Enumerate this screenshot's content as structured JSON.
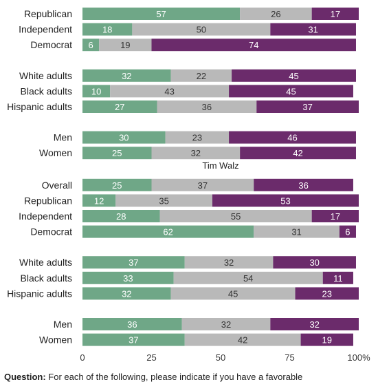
{
  "chart_data": {
    "type": "bar",
    "orientation": "horizontal",
    "stacked": true,
    "xlim": [
      0,
      100
    ],
    "x_ticks": [
      "0",
      "25",
      "50",
      "75",
      "100%"
    ],
    "segment_colors": [
      "#6fa787",
      "#b9b9b9",
      "#6b2b6b"
    ],
    "segment_label_colors": [
      "#ffffff",
      "#333333",
      "#ffffff"
    ],
    "panels": [
      {
        "title": "",
        "groups": [
          {
            "rows": [
              {
                "label": "Republican",
                "values": [
                  57,
                  26,
                  17
                ]
              },
              {
                "label": "Independent",
                "values": [
                  18,
                  50,
                  31
                ]
              },
              {
                "label": "Democrat",
                "values": [
                  6,
                  19,
                  74
                ]
              }
            ]
          },
          {
            "rows": [
              {
                "label": "White adults",
                "values": [
                  32,
                  22,
                  45
                ]
              },
              {
                "label": "Black adults",
                "values": [
                  10,
                  43,
                  45
                ]
              },
              {
                "label": "Hispanic adults",
                "values": [
                  27,
                  36,
                  37
                ]
              }
            ]
          },
          {
            "rows": [
              {
                "label": "Men",
                "values": [
                  30,
                  23,
                  46
                ]
              },
              {
                "label": "Women",
                "values": [
                  25,
                  32,
                  42
                ]
              }
            ]
          }
        ]
      },
      {
        "title": "Tim Walz",
        "groups": [
          {
            "rows": [
              {
                "label": "Overall",
                "values": [
                  25,
                  37,
                  36
                ]
              },
              {
                "label": "Republican",
                "values": [
                  12,
                  35,
                  53
                ]
              },
              {
                "label": "Independent",
                "values": [
                  28,
                  55,
                  17
                ]
              },
              {
                "label": "Democrat",
                "values": [
                  62,
                  31,
                  6
                ]
              }
            ]
          },
          {
            "rows": [
              {
                "label": "White adults",
                "values": [
                  37,
                  32,
                  30
                ]
              },
              {
                "label": "Black adults",
                "values": [
                  33,
                  54,
                  11
                ]
              },
              {
                "label": "Hispanic adults",
                "values": [
                  32,
                  45,
                  23
                ]
              }
            ]
          },
          {
            "rows": [
              {
                "label": "Men",
                "values": [
                  36,
                  32,
                  32
                ]
              },
              {
                "label": "Women",
                "values": [
                  37,
                  42,
                  19
                ]
              }
            ]
          }
        ]
      }
    ]
  },
  "footnote": {
    "label": "Question:",
    "text": " For each of the following, please indicate if you have a favorable"
  }
}
